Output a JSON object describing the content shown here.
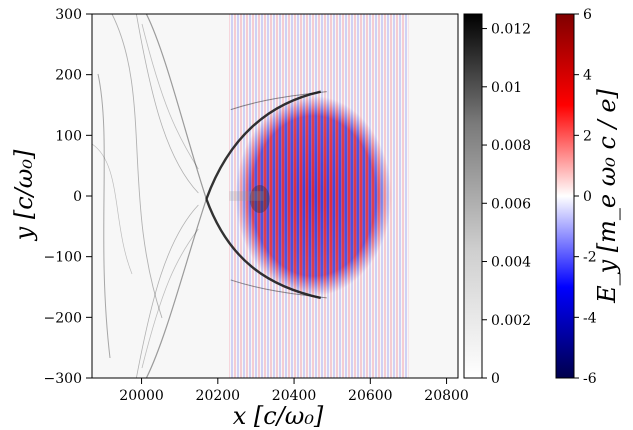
{
  "chart_data": {
    "type": "heatmap",
    "title": "",
    "xlabel": "x [c/ω₀]",
    "ylabel": "y [c/ω₀]",
    "xlim": [
      19870,
      20830
    ],
    "ylim": [
      -300,
      300
    ],
    "x_ticks": [
      20000,
      20200,
      20400,
      20600,
      20800
    ],
    "x_tick_labels": [
      "20000",
      "20200",
      "20400",
      "20600",
      "20800"
    ],
    "y_ticks": [
      -300,
      -200,
      -100,
      0,
      100,
      200,
      300
    ],
    "y_tick_labels": [
      "−300",
      "−200",
      "−100",
      "0",
      "100",
      "200",
      "300"
    ],
    "colorbars": [
      {
        "name": "density",
        "colormap": "greys",
        "range": [
          0,
          0.0125
        ],
        "ticks": [
          0,
          0.002,
          0.004,
          0.006,
          0.008,
          0.01,
          0.012
        ],
        "tick_labels": [
          "0",
          "0.002",
          "0.004",
          "0.006",
          "0.008",
          "0.01",
          "0.012"
        ],
        "label": ""
      },
      {
        "name": "field",
        "colormap": "seismic",
        "range": [
          -6,
          6
        ],
        "ticks": [
          -6,
          -4,
          -2,
          0,
          2,
          4,
          6
        ],
        "tick_labels": [
          "-6",
          "-4",
          "-2",
          "0",
          "2",
          "4",
          "6"
        ],
        "label": "E_y [m_e ω₀ c / e]"
      }
    ],
    "features": {
      "bow_shock_vertex": [
        20170,
        -5
      ],
      "upper_wing_end": [
        20470,
        172
      ],
      "lower_wing_end": [
        20470,
        -168
      ],
      "laser_pulse_center": [
        20430,
        0
      ],
      "laser_pulse_half_height": 165
    }
  }
}
